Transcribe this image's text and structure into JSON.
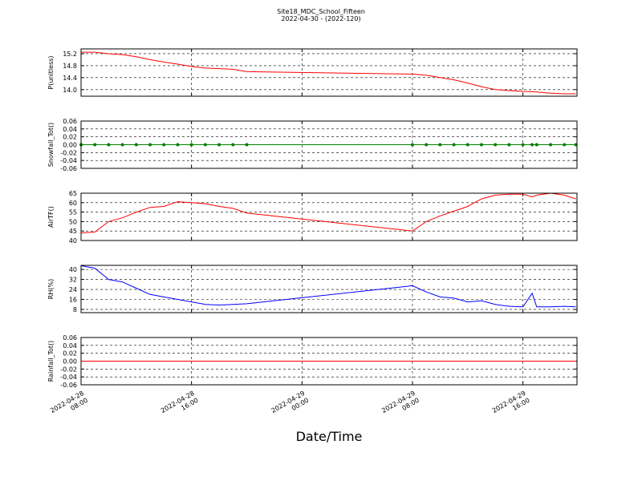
{
  "chart_data": [
    {
      "type": "line",
      "title": "Site18_MDC_School_Fifteen",
      "subtitle": "2022-04-30 - (2022-120)",
      "ylabel": "P(unitless)",
      "color": "#ff0000",
      "marker": false,
      "x": [
        "2022-04-28 08:00",
        "2022-04-28 09:00",
        "2022-04-28 10:00",
        "2022-04-28 11:00",
        "2022-04-28 12:00",
        "2022-04-28 13:00",
        "2022-04-28 14:00",
        "2022-04-28 15:00",
        "2022-04-28 16:00",
        "2022-04-28 17:00",
        "2022-04-28 18:00",
        "2022-04-28 19:00",
        "2022-04-28 20:00",
        "2022-04-29 08:00",
        "2022-04-29 09:00",
        "2022-04-29 10:00",
        "2022-04-29 11:00",
        "2022-04-29 12:00",
        "2022-04-29 13:00",
        "2022-04-29 14:00",
        "2022-04-29 15:00",
        "2022-04-29 16:00",
        "2022-04-29 16:40",
        "2022-04-29 17:00",
        "2022-04-29 18:00",
        "2022-04-29 19:00",
        "2022-04-29 19:50"
      ],
      "values": [
        15.25,
        15.25,
        15.2,
        15.17,
        15.1,
        15.0,
        14.92,
        14.85,
        14.77,
        14.72,
        14.7,
        14.68,
        14.6,
        14.52,
        14.48,
        14.4,
        14.33,
        14.22,
        14.1,
        14.0,
        13.97,
        13.94,
        13.93,
        13.92,
        13.88,
        13.86,
        13.86
      ],
      "xlim": [
        "2022-04-28 08:00",
        "2022-04-29 19:55"
      ],
      "xticks": [
        "2022-04-28 08:00",
        "2022-04-28 16:00",
        "2022-04-29 00:00",
        "2022-04-29 08:00",
        "2022-04-29 16:00"
      ],
      "ylim": [
        13.78,
        15.36
      ],
      "yticks": [
        {
          "value": 14,
          "label": "14.0"
        },
        14.4,
        14.8,
        15.2
      ],
      "grid": true
    },
    {
      "type": "line",
      "ylabel": "Snowfall_Tot()",
      "color": "#008000",
      "marker": true,
      "x": [
        "2022-04-28 08:00",
        "2022-04-28 09:00",
        "2022-04-28 10:00",
        "2022-04-28 11:00",
        "2022-04-28 12:00",
        "2022-04-28 13:00",
        "2022-04-28 14:00",
        "2022-04-28 15:00",
        "2022-04-28 16:00",
        "2022-04-28 17:00",
        "2022-04-28 18:00",
        "2022-04-28 19:00",
        "2022-04-28 20:00",
        "2022-04-29 08:00",
        "2022-04-29 09:00",
        "2022-04-29 10:00",
        "2022-04-29 11:00",
        "2022-04-29 12:00",
        "2022-04-29 13:00",
        "2022-04-29 14:00",
        "2022-04-29 15:00",
        "2022-04-29 16:00",
        "2022-04-29 16:40",
        "2022-04-29 17:00",
        "2022-04-29 18:00",
        "2022-04-29 19:00",
        "2022-04-29 19:50"
      ],
      "values": [
        0,
        0,
        0,
        0,
        0,
        0,
        0,
        0,
        0,
        0,
        0,
        0,
        0,
        0,
        0,
        0,
        0,
        0,
        0,
        0,
        0,
        0,
        0,
        0,
        0,
        0,
        0
      ],
      "xlim": [
        "2022-04-28 08:00",
        "2022-04-29 19:55"
      ],
      "xticks": [
        "2022-04-28 08:00",
        "2022-04-28 16:00",
        "2022-04-29 00:00",
        "2022-04-29 08:00",
        "2022-04-29 16:00"
      ],
      "ylim": [
        -0.06,
        0.06
      ],
      "yticks": [
        -0.06,
        -0.04,
        -0.02,
        {
          "value": 0,
          "label": "0.00"
        },
        0.02,
        0.04,
        0.06
      ],
      "grid": true
    },
    {
      "type": "line",
      "ylabel": "AirTF()",
      "color": "#ff0000",
      "marker": false,
      "x": [
        "2022-04-28 08:00",
        "2022-04-28 09:00",
        "2022-04-28 10:00",
        "2022-04-28 11:00",
        "2022-04-28 12:00",
        "2022-04-28 13:00",
        "2022-04-28 14:00",
        "2022-04-28 15:00",
        "2022-04-28 16:00",
        "2022-04-28 17:00",
        "2022-04-28 18:00",
        "2022-04-28 19:00",
        "2022-04-28 20:00",
        "2022-04-29 08:00",
        "2022-04-29 09:00",
        "2022-04-29 10:00",
        "2022-04-29 11:00",
        "2022-04-29 12:00",
        "2022-04-29 13:00",
        "2022-04-29 14:00",
        "2022-04-29 15:00",
        "2022-04-29 16:00",
        "2022-04-29 16:40",
        "2022-04-29 17:00",
        "2022-04-29 18:00",
        "2022-04-29 19:00",
        "2022-04-29 19:50"
      ],
      "values": [
        44,
        44.5,
        50,
        52,
        55,
        57.5,
        58,
        60.5,
        60,
        59.5,
        58,
        57,
        54.5,
        45,
        50,
        53,
        55.5,
        58,
        62,
        64,
        64.5,
        64.5,
        63,
        64,
        65,
        64,
        62
      ],
      "xlim": [
        "2022-04-28 08:00",
        "2022-04-29 19:55"
      ],
      "xticks": [
        "2022-04-28 08:00",
        "2022-04-28 16:00",
        "2022-04-29 00:00",
        "2022-04-29 08:00",
        "2022-04-29 16:00"
      ],
      "ylim": [
        40,
        65
      ],
      "yticks": [
        40,
        45,
        50,
        55,
        60,
        65
      ],
      "grid": true
    },
    {
      "type": "line",
      "ylabel": "RH(%)",
      "color": "#0000ff",
      "marker": false,
      "x": [
        "2022-04-28 08:00",
        "2022-04-28 09:00",
        "2022-04-28 10:00",
        "2022-04-28 11:00",
        "2022-04-28 12:00",
        "2022-04-28 13:00",
        "2022-04-28 14:00",
        "2022-04-28 15:00",
        "2022-04-28 16:00",
        "2022-04-28 17:00",
        "2022-04-28 18:00",
        "2022-04-28 19:00",
        "2022-04-28 20:00",
        "2022-04-29 08:00",
        "2022-04-29 09:00",
        "2022-04-29 10:00",
        "2022-04-29 11:00",
        "2022-04-29 12:00",
        "2022-04-29 13:00",
        "2022-04-29 14:00",
        "2022-04-29 15:00",
        "2022-04-29 16:00",
        "2022-04-29 16:40",
        "2022-04-29 17:00",
        "2022-04-29 18:00",
        "2022-04-29 19:00",
        "2022-04-29 19:50"
      ],
      "values": [
        43,
        41,
        32,
        30,
        25,
        20,
        18,
        16,
        14,
        12,
        11.5,
        12,
        12.5,
        27,
        22,
        18,
        17,
        14,
        15,
        12,
        10.5,
        10,
        21,
        10,
        10,
        10.5,
        10
      ],
      "xlim": [
        "2022-04-28 08:00",
        "2022-04-29 19:55"
      ],
      "xticks": [
        "2022-04-28 08:00",
        "2022-04-28 16:00",
        "2022-04-29 00:00",
        "2022-04-29 08:00",
        "2022-04-29 16:00"
      ],
      "ylim": [
        5.4,
        43.3
      ],
      "yticks": [
        8,
        16,
        24,
        32,
        40
      ],
      "grid": true
    },
    {
      "type": "line",
      "ylabel": "Rainfall_Tot()",
      "xlabel": "Date/Time",
      "color": "#ff0000",
      "marker": false,
      "x": [
        "2022-04-28 08:00",
        "2022-04-28 09:00",
        "2022-04-28 10:00",
        "2022-04-28 11:00",
        "2022-04-28 12:00",
        "2022-04-28 13:00",
        "2022-04-28 14:00",
        "2022-04-28 15:00",
        "2022-04-28 16:00",
        "2022-04-28 17:00",
        "2022-04-28 18:00",
        "2022-04-28 19:00",
        "2022-04-28 20:00",
        "2022-04-29 08:00",
        "2022-04-29 09:00",
        "2022-04-29 10:00",
        "2022-04-29 11:00",
        "2022-04-29 12:00",
        "2022-04-29 13:00",
        "2022-04-29 14:00",
        "2022-04-29 15:00",
        "2022-04-29 16:00",
        "2022-04-29 16:40",
        "2022-04-29 17:00",
        "2022-04-29 18:00",
        "2022-04-29 19:00",
        "2022-04-29 19:50"
      ],
      "values": [
        0,
        0,
        0,
        0,
        0,
        0,
        0,
        0,
        0,
        0,
        0,
        0,
        0,
        0,
        0,
        0,
        0,
        0,
        0,
        0,
        0,
        0,
        0,
        0,
        0,
        0,
        0
      ],
      "xlim": [
        "2022-04-28 08:00",
        "2022-04-29 19:55"
      ],
      "xticks": [
        "2022-04-28 08:00",
        "2022-04-28 16:00",
        "2022-04-29 00:00",
        "2022-04-29 08:00",
        "2022-04-29 16:00"
      ],
      "ylim": [
        -0.06,
        0.06
      ],
      "yticks": [
        -0.06,
        -0.04,
        -0.02,
        {
          "value": 0,
          "label": "0.00"
        },
        0.02,
        0.04,
        0.06
      ],
      "grid": true,
      "show_xtick_labels": true
    }
  ]
}
